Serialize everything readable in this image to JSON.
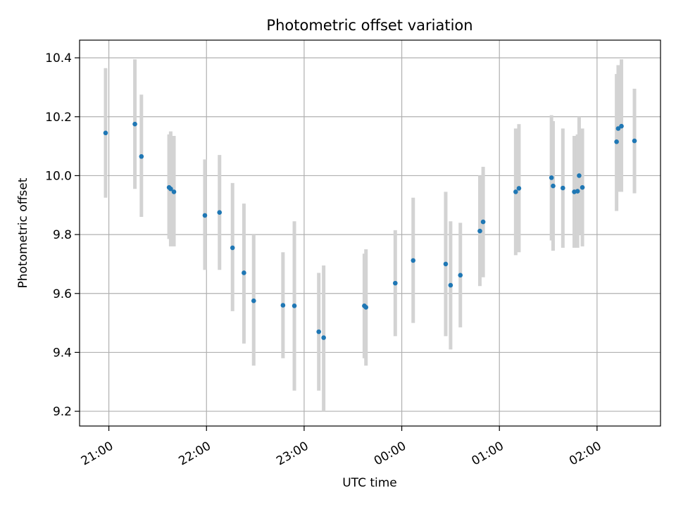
{
  "chart_data": {
    "type": "scatter",
    "title": "Photometric offset variation",
    "xlabel": "UTC time",
    "ylabel": "Photometric offset",
    "x_unit": "UTC time (hh:mm)",
    "xlim": [
      "20:42",
      "02:39"
    ],
    "ylim": [
      9.15,
      10.46
    ],
    "grid": true,
    "x_ticks": [
      "21:00",
      "22:00",
      "23:00",
      "00:00",
      "01:00",
      "02:00"
    ],
    "y_ticks": [
      "9.2",
      "9.4",
      "9.6",
      "9.8",
      "10.0",
      "10.2",
      "10.4"
    ],
    "colors": {
      "point": "#1f77b4",
      "errorbar": "#d3d3d3",
      "grid": "#b0b0b0"
    },
    "points": [
      {
        "x": "20:58",
        "y": 10.145,
        "lo": 9.925,
        "hi": 10.365
      },
      {
        "x": "21:16",
        "y": 10.175,
        "lo": 9.955,
        "hi": 10.395
      },
      {
        "x": "21:20",
        "y": 10.065,
        "lo": 9.86,
        "hi": 10.275
      },
      {
        "x": "21:37",
        "y": 9.96,
        "lo": 9.785,
        "hi": 10.14
      },
      {
        "x": "21:38",
        "y": 9.955,
        "lo": 9.76,
        "hi": 10.15
      },
      {
        "x": "21:40",
        "y": 9.945,
        "lo": 9.76,
        "hi": 10.135
      },
      {
        "x": "21:59",
        "y": 9.865,
        "lo": 9.68,
        "hi": 10.055
      },
      {
        "x": "22:08",
        "y": 9.875,
        "lo": 9.68,
        "hi": 10.07
      },
      {
        "x": "22:16",
        "y": 9.755,
        "lo": 9.54,
        "hi": 9.975
      },
      {
        "x": "22:23",
        "y": 9.67,
        "lo": 9.43,
        "hi": 9.905
      },
      {
        "x": "22:29",
        "y": 9.575,
        "lo": 9.355,
        "hi": 9.8
      },
      {
        "x": "22:47",
        "y": 9.56,
        "lo": 9.38,
        "hi": 9.74
      },
      {
        "x": "22:54",
        "y": 9.558,
        "lo": 9.27,
        "hi": 9.845
      },
      {
        "x": "23:09",
        "y": 9.47,
        "lo": 9.27,
        "hi": 9.67
      },
      {
        "x": "23:12",
        "y": 9.45,
        "lo": 9.2,
        "hi": 9.695
      },
      {
        "x": "23:37",
        "y": 9.558,
        "lo": 9.38,
        "hi": 9.735
      },
      {
        "x": "23:38",
        "y": 9.553,
        "lo": 9.355,
        "hi": 9.75
      },
      {
        "x": "23:56",
        "y": 9.635,
        "lo": 9.455,
        "hi": 9.815
      },
      {
        "x": "00:07",
        "y": 9.712,
        "lo": 9.5,
        "hi": 9.925
      },
      {
        "x": "00:27",
        "y": 9.7,
        "lo": 9.455,
        "hi": 9.945
      },
      {
        "x": "00:30",
        "y": 9.628,
        "lo": 9.41,
        "hi": 9.845
      },
      {
        "x": "00:36",
        "y": 9.662,
        "lo": 9.485,
        "hi": 9.84
      },
      {
        "x": "00:48",
        "y": 9.812,
        "lo": 9.625,
        "hi": 10.0
      },
      {
        "x": "00:50",
        "y": 9.843,
        "lo": 9.655,
        "hi": 10.03
      },
      {
        "x": "01:10",
        "y": 9.945,
        "lo": 9.73,
        "hi": 10.16
      },
      {
        "x": "01:12",
        "y": 9.957,
        "lo": 9.74,
        "hi": 10.175
      },
      {
        "x": "01:32",
        "y": 9.993,
        "lo": 9.78,
        "hi": 10.205
      },
      {
        "x": "01:33",
        "y": 9.965,
        "lo": 9.745,
        "hi": 10.185
      },
      {
        "x": "01:39",
        "y": 9.958,
        "lo": 9.755,
        "hi": 10.16
      },
      {
        "x": "01:46",
        "y": 9.945,
        "lo": 9.755,
        "hi": 10.135
      },
      {
        "x": "01:48",
        "y": 9.947,
        "lo": 9.755,
        "hi": 10.14
      },
      {
        "x": "01:49",
        "y": 10.0,
        "lo": 9.8,
        "hi": 10.2
      },
      {
        "x": "01:51",
        "y": 9.96,
        "lo": 9.76,
        "hi": 10.16
      },
      {
        "x": "02:12",
        "y": 10.115,
        "lo": 9.88,
        "hi": 10.345
      },
      {
        "x": "02:13",
        "y": 10.16,
        "lo": 9.945,
        "hi": 10.375
      },
      {
        "x": "02:15",
        "y": 10.168,
        "lo": 9.945,
        "hi": 10.395
      },
      {
        "x": "02:23",
        "y": 10.118,
        "lo": 9.94,
        "hi": 10.295
      }
    ]
  }
}
